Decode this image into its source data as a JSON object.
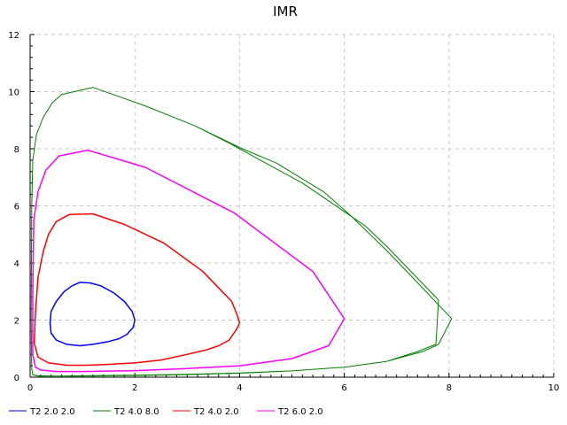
{
  "chart_data": {
    "type": "line",
    "title": "IMR",
    "xlabel": "",
    "ylabel": "",
    "xlim": [
      0,
      10
    ],
    "ylim": [
      0,
      12
    ],
    "x_ticks": [
      "0",
      "2",
      "4",
      "6",
      "8",
      "10"
    ],
    "y_ticks": [
      "0",
      "2",
      "4",
      "6",
      "8",
      "10",
      "12"
    ],
    "grid": true,
    "legend_position": "bottom",
    "series": [
      {
        "name": "T2 2.0 2.0",
        "color": "#0000ff",
        "points": [
          [
            2.0,
            2.0
          ],
          [
            1.97,
            1.75
          ],
          [
            1.85,
            1.5
          ],
          [
            1.7,
            1.35
          ],
          [
            1.5,
            1.25
          ],
          [
            1.2,
            1.15
          ],
          [
            0.95,
            1.1
          ],
          [
            0.7,
            1.15
          ],
          [
            0.5,
            1.3
          ],
          [
            0.4,
            1.55
          ],
          [
            0.38,
            1.9
          ],
          [
            0.4,
            2.3
          ],
          [
            0.5,
            2.65
          ],
          [
            0.65,
            3.0
          ],
          [
            0.8,
            3.2
          ],
          [
            0.95,
            3.32
          ],
          [
            1.15,
            3.3
          ],
          [
            1.35,
            3.2
          ],
          [
            1.6,
            2.95
          ],
          [
            1.8,
            2.65
          ],
          [
            1.95,
            2.3
          ],
          [
            2.0,
            2.0
          ]
        ]
      },
      {
        "name": "T2 4.0 8.0",
        "color": "#008000",
        "points": [
          [
            8.05,
            2.05
          ],
          [
            7.8,
            1.15
          ],
          [
            7.5,
            0.9
          ],
          [
            6.8,
            0.55
          ],
          [
            6.0,
            0.35
          ],
          [
            5.0,
            0.22
          ],
          [
            4.0,
            0.15
          ],
          [
            3.0,
            0.1
          ],
          [
            2.0,
            0.07
          ],
          [
            1.0,
            0.05
          ],
          [
            0.5,
            0.04
          ],
          [
            0.15,
            0.04
          ],
          [
            0.05,
            0.08
          ],
          [
            0.03,
            0.3
          ],
          [
            0.02,
            2.0
          ],
          [
            0.03,
            6.0
          ],
          [
            0.05,
            7.6
          ],
          [
            0.12,
            8.5
          ],
          [
            0.25,
            9.1
          ],
          [
            0.42,
            9.6
          ],
          [
            0.6,
            9.9
          ],
          [
            1.2,
            10.15
          ],
          [
            2.2,
            9.5
          ],
          [
            3.15,
            8.8
          ],
          [
            3.8,
            8.2
          ],
          [
            4.4,
            7.6
          ],
          [
            5.2,
            6.8
          ],
          [
            6.0,
            5.8
          ],
          [
            6.4,
            5.3
          ],
          [
            6.8,
            4.6
          ],
          [
            7.8,
            2.7
          ],
          [
            7.75,
            1.15
          ],
          [
            7.4,
            0.9
          ],
          [
            6.8,
            0.55
          ],
          [
            6.2,
            0.4
          ],
          [
            6.0,
            0.35
          ],
          [
            5.0,
            0.22
          ],
          [
            4.0,
            0.14
          ],
          [
            3.0,
            0.09
          ],
          [
            2.0,
            0.06
          ],
          [
            1.0,
            0.04
          ],
          [
            0.5,
            0.04
          ],
          [
            0.15,
            0.05
          ],
          [
            0.05,
            0.08
          ],
          [
            0.03,
            0.3
          ],
          [
            0.02,
            2.0
          ],
          [
            0.03,
            6.0
          ],
          [
            0.05,
            7.6
          ],
          [
            0.12,
            8.5
          ],
          [
            0.25,
            9.1
          ],
          [
            0.42,
            9.6
          ],
          [
            0.6,
            9.9
          ],
          [
            1.2,
            10.15
          ],
          [
            2.2,
            9.5
          ],
          [
            3.15,
            8.8
          ],
          [
            4.05,
            8.0
          ],
          [
            4.7,
            7.5
          ],
          [
            5.6,
            6.5
          ],
          [
            6.1,
            5.7
          ],
          [
            6.8,
            4.45
          ],
          [
            7.3,
            3.5
          ],
          [
            8.05,
            2.05
          ]
        ]
      },
      {
        "name": "T2 4.0 2.0",
        "color": "#ff0000",
        "points": [
          [
            4.0,
            1.9
          ],
          [
            3.95,
            1.7
          ],
          [
            3.8,
            1.3
          ],
          [
            3.6,
            1.1
          ],
          [
            3.35,
            0.95
          ],
          [
            3.0,
            0.8
          ],
          [
            2.5,
            0.6
          ],
          [
            2.0,
            0.5
          ],
          [
            1.5,
            0.45
          ],
          [
            1.1,
            0.42
          ],
          [
            0.7,
            0.42
          ],
          [
            0.35,
            0.5
          ],
          [
            0.15,
            0.7
          ],
          [
            0.08,
            1.2
          ],
          [
            0.1,
            2.2
          ],
          [
            0.15,
            3.5
          ],
          [
            0.25,
            4.4
          ],
          [
            0.35,
            5.0
          ],
          [
            0.5,
            5.45
          ],
          [
            0.75,
            5.7
          ],
          [
            1.2,
            5.72
          ],
          [
            1.8,
            5.35
          ],
          [
            2.55,
            4.7
          ],
          [
            3.3,
            3.7
          ],
          [
            3.85,
            2.65
          ],
          [
            3.95,
            2.2
          ],
          [
            4.0,
            1.9
          ]
        ]
      },
      {
        "name": "T2 6.0 2.0",
        "color": "#ff00ff",
        "points": [
          [
            6.0,
            2.05
          ],
          [
            5.7,
            1.1
          ],
          [
            5.0,
            0.65
          ],
          [
            4.0,
            0.4
          ],
          [
            3.0,
            0.3
          ],
          [
            2.0,
            0.23
          ],
          [
            1.0,
            0.2
          ],
          [
            0.5,
            0.2
          ],
          [
            0.2,
            0.25
          ],
          [
            0.1,
            0.35
          ],
          [
            0.05,
            0.8
          ],
          [
            0.05,
            3.0
          ],
          [
            0.07,
            5.5
          ],
          [
            0.15,
            6.5
          ],
          [
            0.3,
            7.25
          ],
          [
            0.55,
            7.75
          ],
          [
            1.1,
            7.95
          ],
          [
            2.2,
            7.35
          ],
          [
            3.9,
            5.75
          ],
          [
            5.4,
            3.7
          ],
          [
            6.0,
            2.05
          ]
        ]
      }
    ]
  }
}
